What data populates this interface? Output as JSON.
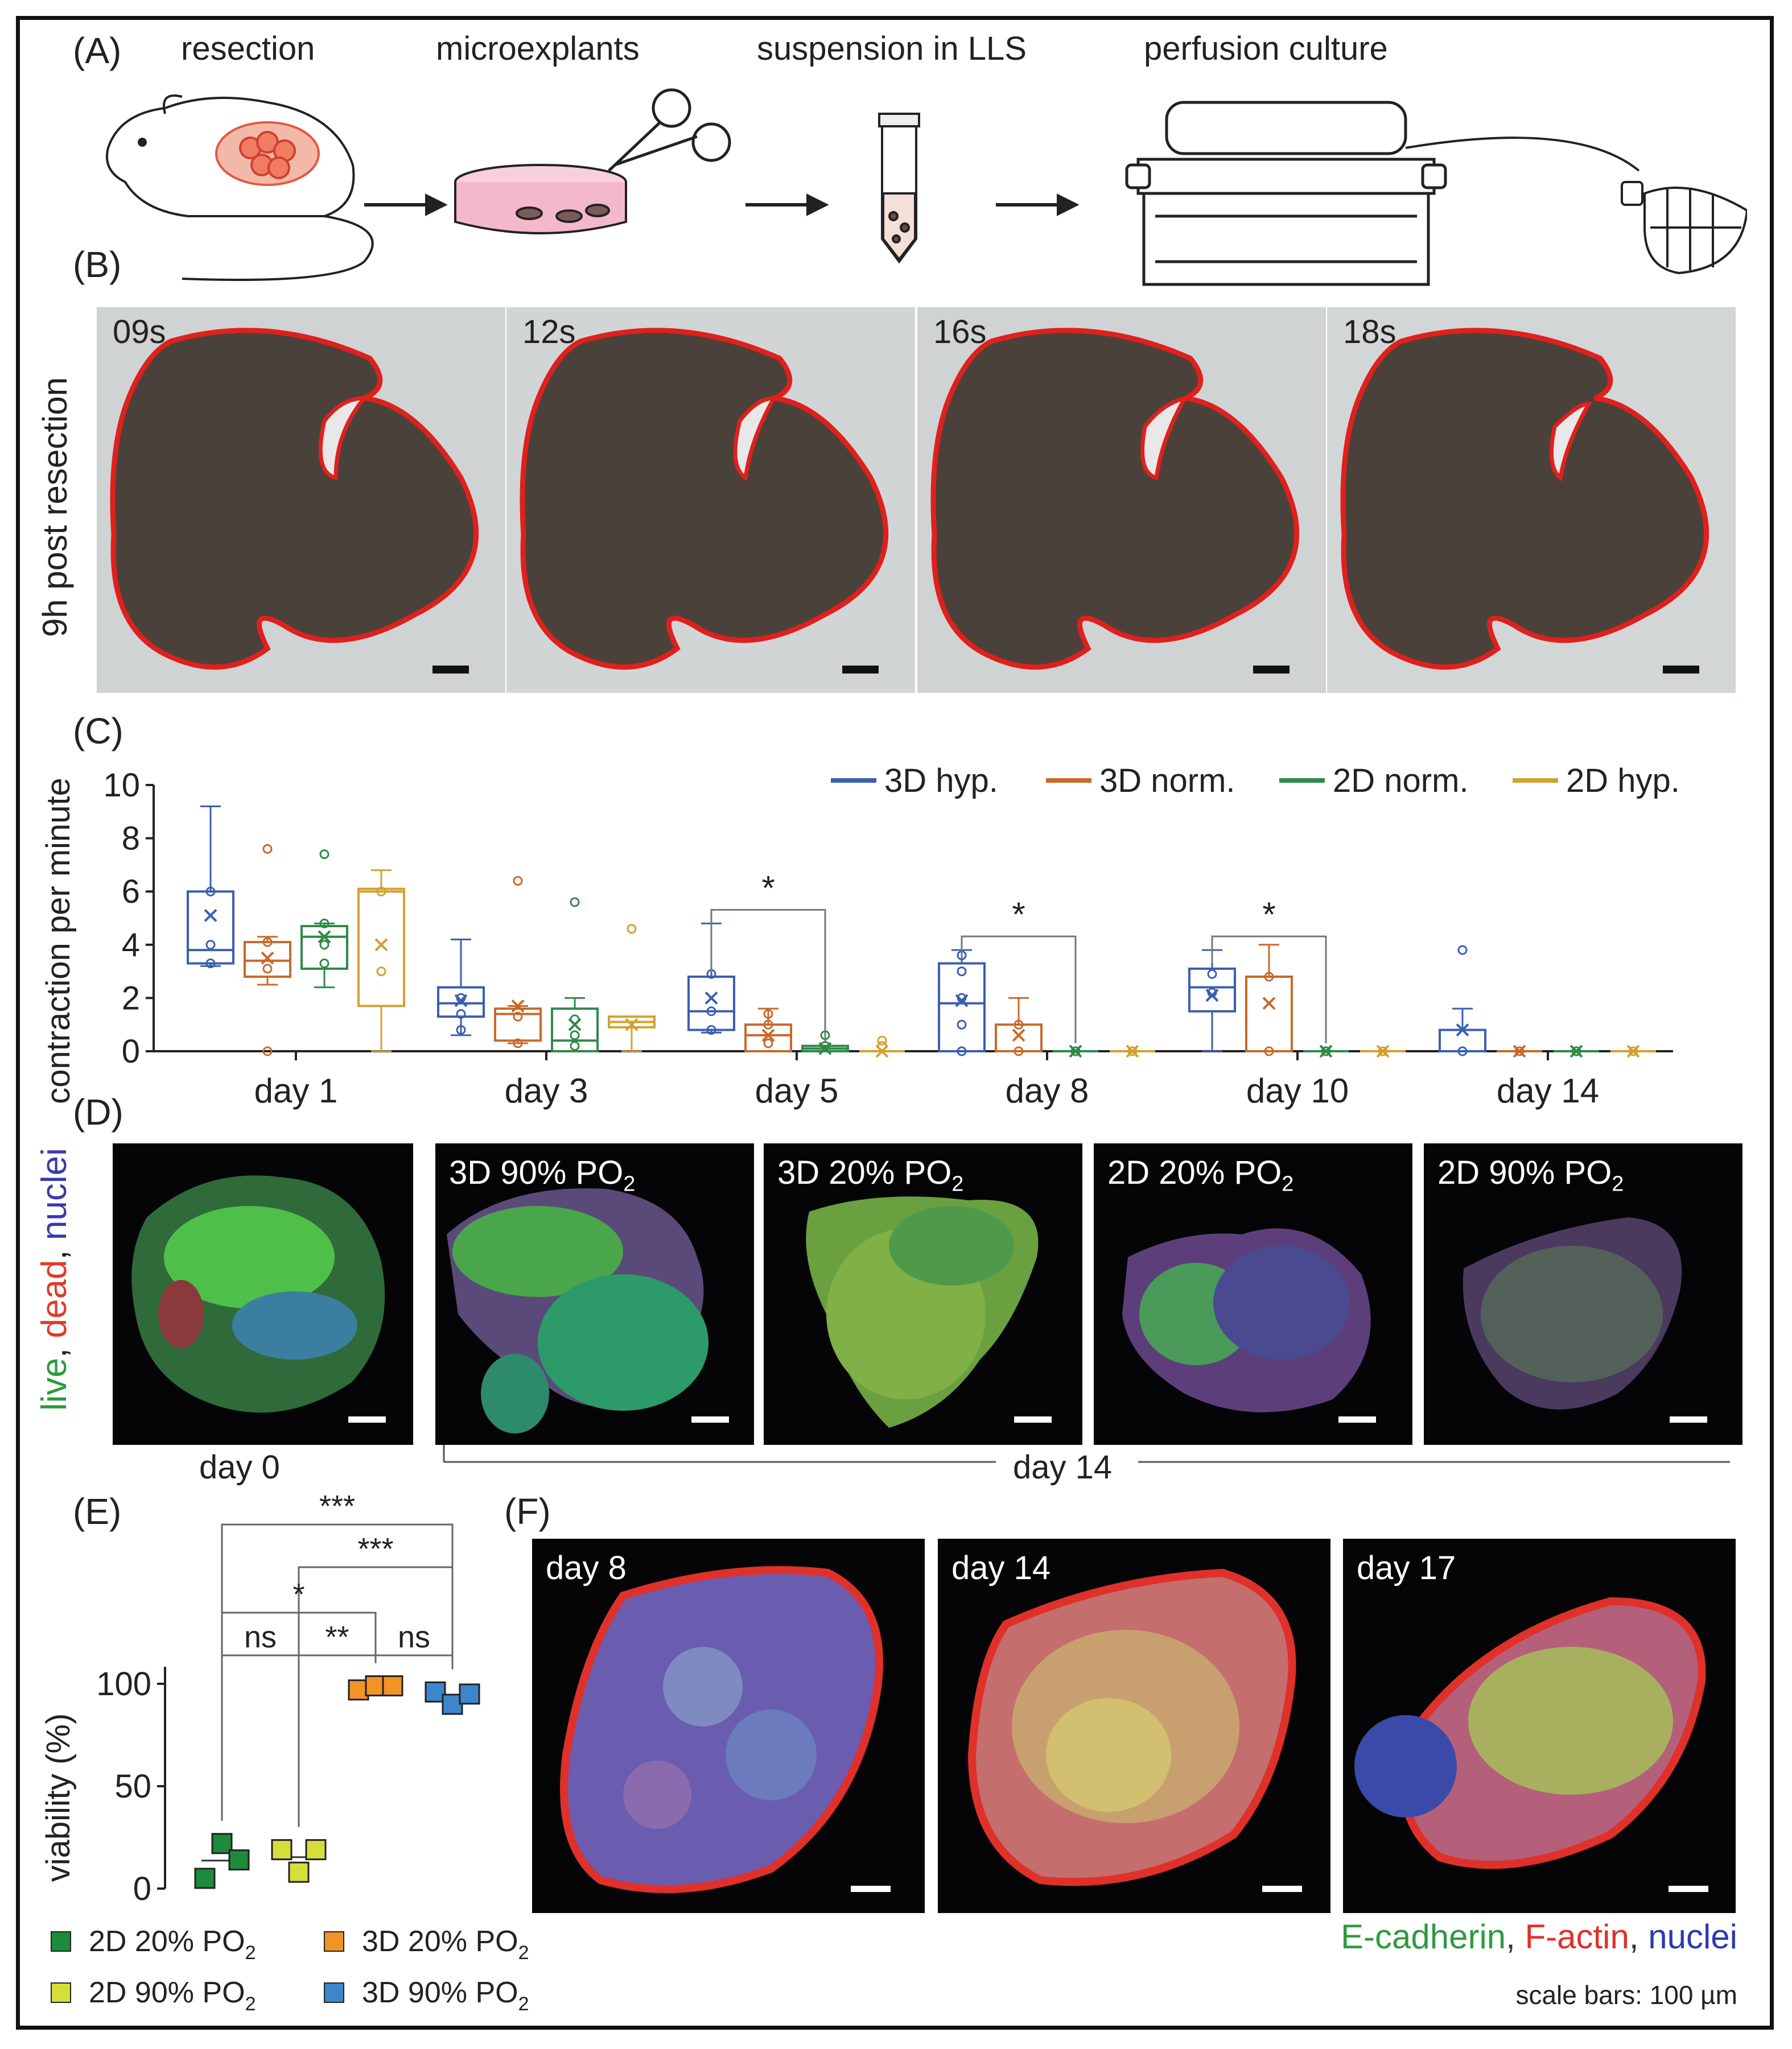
{
  "panels": {
    "a": {
      "label": "(A)",
      "steps": [
        "resection",
        "microexplants",
        "suspension in LLS",
        "perfusion culture"
      ]
    },
    "b": {
      "label": "(B)",
      "side_label": "9h post resection",
      "timestamps": [
        "09s",
        "12s",
        "16s",
        "18s"
      ]
    },
    "c": {
      "label": "(C)"
    },
    "d": {
      "label": "(D)",
      "side_label_parts": [
        "live",
        ", ",
        "dead",
        ", ",
        "nuclei"
      ],
      "side_colors": [
        "#2a9a3a",
        "#222222",
        "#e03a2a",
        "#222222",
        "#3a3aa8"
      ],
      "titles": [
        "3D 90% PO",
        "3D 20% PO",
        "2D 20% PO",
        "2D 90% PO"
      ],
      "subscript": "2",
      "caption_left": "day 0",
      "caption_right": "day 14"
    },
    "e": {
      "label": "(E)"
    },
    "f": {
      "label": "(F)",
      "titles": [
        "day 8",
        "day 14",
        "day 17"
      ],
      "stain_parts": [
        "E-cadherin",
        ", ",
        "F-actin",
        ", ",
        "nuclei"
      ],
      "stain_colors": [
        "#2f9a40",
        "#333333",
        "#e0302a",
        "#333333",
        "#2a3ab0"
      ],
      "scale_note": "scale bars: 100 µm"
    }
  },
  "chart_data": [
    {
      "type": "box",
      "ylabel": "contraction per minute",
      "ylim": [
        0,
        10
      ],
      "yticks": [
        0,
        2,
        4,
        6,
        8,
        10
      ],
      "categories": [
        "day 1",
        "day 3",
        "day 5",
        "day 8",
        "day 10",
        "day 14"
      ],
      "legend_position": "top-right",
      "series": [
        {
          "name": "3D hyp.",
          "color": "#3a5fb0",
          "boxes": [
            {
              "min": 3.2,
              "q1": 3.3,
              "median": 3.8,
              "q3": 6.0,
              "max": 9.2,
              "mean": 5.1,
              "points": [
                3.3,
                4.0,
                6.0
              ]
            },
            {
              "min": 0.6,
              "q1": 1.3,
              "median": 1.8,
              "q3": 2.4,
              "max": 4.2,
              "mean": 1.9,
              "points": [
                0.8,
                1.4,
                2.0
              ]
            },
            {
              "min": 0.7,
              "q1": 0.8,
              "median": 1.5,
              "q3": 2.8,
              "max": 4.8,
              "mean": 2.0,
              "points": [
                0.8,
                1.5,
                2.9
              ]
            },
            {
              "min": 0.0,
              "q1": 0.0,
              "median": 1.8,
              "q3": 3.3,
              "max": 3.8,
              "mean": 1.9,
              "points": [
                0.0,
                1.0,
                2.0,
                3.0,
                3.6
              ]
            },
            {
              "min": 0.0,
              "q1": 1.5,
              "median": 2.4,
              "q3": 3.1,
              "max": 3.8,
              "mean": 2.1,
              "points": [
                2.9,
                2.2
              ]
            },
            {
              "min": 0.0,
              "q1": 0.0,
              "median": 0.0,
              "q3": 0.8,
              "max": 1.6,
              "mean": 0.8,
              "points": [
                0.0,
                3.8
              ]
            }
          ]
        },
        {
          "name": "3D norm.",
          "color": "#c8692a",
          "boxes": [
            {
              "min": 2.5,
              "q1": 2.8,
              "median": 3.4,
              "q3": 4.1,
              "max": 4.3,
              "mean": 3.5,
              "points": [
                0.0,
                3.1,
                4.1,
                7.6
              ]
            },
            {
              "min": 0.3,
              "q1": 0.4,
              "median": 1.4,
              "q3": 1.6,
              "max": 1.7,
              "mean": 1.7,
              "points": [
                0.3,
                1.3,
                6.4
              ]
            },
            {
              "min": 0.0,
              "q1": 0.0,
              "median": 0.6,
              "q3": 1.0,
              "max": 1.6,
              "mean": 0.6,
              "points": [
                0.3,
                1.0,
                1.4
              ]
            },
            {
              "min": 0.0,
              "q1": 0.0,
              "median": 0.0,
              "q3": 1.0,
              "max": 2.0,
              "mean": 0.6,
              "points": [
                0.0,
                1.0
              ]
            },
            {
              "min": 0.0,
              "q1": 0.0,
              "median": 2.8,
              "q3": 2.8,
              "max": 4.0,
              "mean": 1.8,
              "points": [
                0.0,
                2.8
              ]
            },
            {
              "min": 0.0,
              "q1": 0.0,
              "median": 0.0,
              "q3": 0.0,
              "max": 0.0,
              "mean": 0.0,
              "points": [
                0.0
              ]
            }
          ]
        },
        {
          "name": "2D norm.",
          "color": "#2e8a48",
          "boxes": [
            {
              "min": 2.4,
              "q1": 3.1,
              "median": 4.3,
              "q3": 4.7,
              "max": 4.8,
              "mean": 4.3,
              "points": [
                3.3,
                4.0,
                4.8,
                7.4
              ]
            },
            {
              "min": 0.0,
              "q1": 0.0,
              "median": 0.4,
              "q3": 1.6,
              "max": 2.0,
              "mean": 1.0,
              "points": [
                0.2,
                0.6,
                1.2,
                5.6
              ]
            },
            {
              "min": 0.0,
              "q1": 0.0,
              "median": 0.1,
              "q3": 0.2,
              "max": 0.2,
              "mean": 0.1,
              "points": [
                0.2,
                0.6
              ]
            },
            {
              "min": 0.0,
              "q1": 0.0,
              "median": 0.0,
              "q3": 0.0,
              "max": 0.0,
              "mean": 0.0,
              "points": [
                0.0
              ]
            },
            {
              "min": 0.0,
              "q1": 0.0,
              "median": 0.0,
              "q3": 0.0,
              "max": 0.0,
              "mean": 0.0,
              "points": [
                0.0
              ]
            },
            {
              "min": 0.0,
              "q1": 0.0,
              "median": 0.0,
              "q3": 0.0,
              "max": 0.0,
              "mean": 0.0,
              "points": [
                0.0
              ]
            }
          ]
        },
        {
          "name": "2D hyp.",
          "color": "#d4a030",
          "boxes": [
            {
              "min": 0.0,
              "q1": 1.7,
              "median": 6.0,
              "q3": 6.1,
              "max": 6.8,
              "mean": 4.0,
              "points": [
                3.0,
                6.0
              ]
            },
            {
              "min": 0.0,
              "q1": 0.9,
              "median": 1.1,
              "q3": 1.3,
              "max": 1.3,
              "mean": 1.0,
              "points": [
                4.6
              ]
            },
            {
              "min": 0.0,
              "q1": 0.0,
              "median": 0.0,
              "q3": 0.0,
              "max": 0.0,
              "mean": 0.0,
              "points": [
                0.2,
                0.4
              ]
            },
            {
              "min": 0.0,
              "q1": 0.0,
              "median": 0.0,
              "q3": 0.0,
              "max": 0.0,
              "mean": 0.0,
              "points": [
                0.0
              ]
            },
            {
              "min": 0.0,
              "q1": 0.0,
              "median": 0.0,
              "q3": 0.0,
              "max": 0.0,
              "mean": 0.0,
              "points": [
                0.0
              ]
            },
            {
              "min": 0.0,
              "q1": 0.0,
              "median": 0.0,
              "q3": 0.0,
              "max": 0.0,
              "mean": 0.0,
              "points": [
                0.0
              ]
            }
          ]
        }
      ],
      "significance": [
        {
          "category": "day 5",
          "from_series": 0,
          "to_series": 2,
          "label": "*"
        },
        {
          "category": "day 8",
          "from_series": 0,
          "to_series": 2,
          "label": "*"
        },
        {
          "category": "day 10",
          "from_series": 0,
          "to_series": 2,
          "label": "*"
        }
      ]
    },
    {
      "type": "scatter",
      "ylabel": "viability (%)",
      "ylim": [
        0,
        100
      ],
      "yticks": [
        0,
        50,
        100
      ],
      "groups": [
        {
          "name": "2D 20% PO",
          "sub": "2",
          "color": "#1e8a3c",
          "values": [
            5,
            22,
            14
          ]
        },
        {
          "name": "2D 90% PO",
          "sub": "2",
          "color": "#d6de3a",
          "values": [
            19,
            8,
            19
          ]
        },
        {
          "name": "3D 20% PO",
          "sub": "2",
          "color": "#f29326",
          "values": [
            97,
            99,
            99
          ]
        },
        {
          "name": "3D 90% PO",
          "sub": "2",
          "color": "#3e86cc",
          "values": [
            96,
            90,
            95
          ]
        }
      ],
      "comparisons": [
        {
          "from": 0,
          "to": 3,
          "label": "***"
        },
        {
          "from": 1,
          "to": 3,
          "label": "***"
        },
        {
          "from": 0,
          "to": 2,
          "label": "*"
        },
        {
          "from": 0,
          "to": 1,
          "label": "ns"
        },
        {
          "from": 1,
          "to": 2,
          "label": "**"
        },
        {
          "from": 2,
          "to": 3,
          "label": "ns"
        }
      ]
    }
  ]
}
